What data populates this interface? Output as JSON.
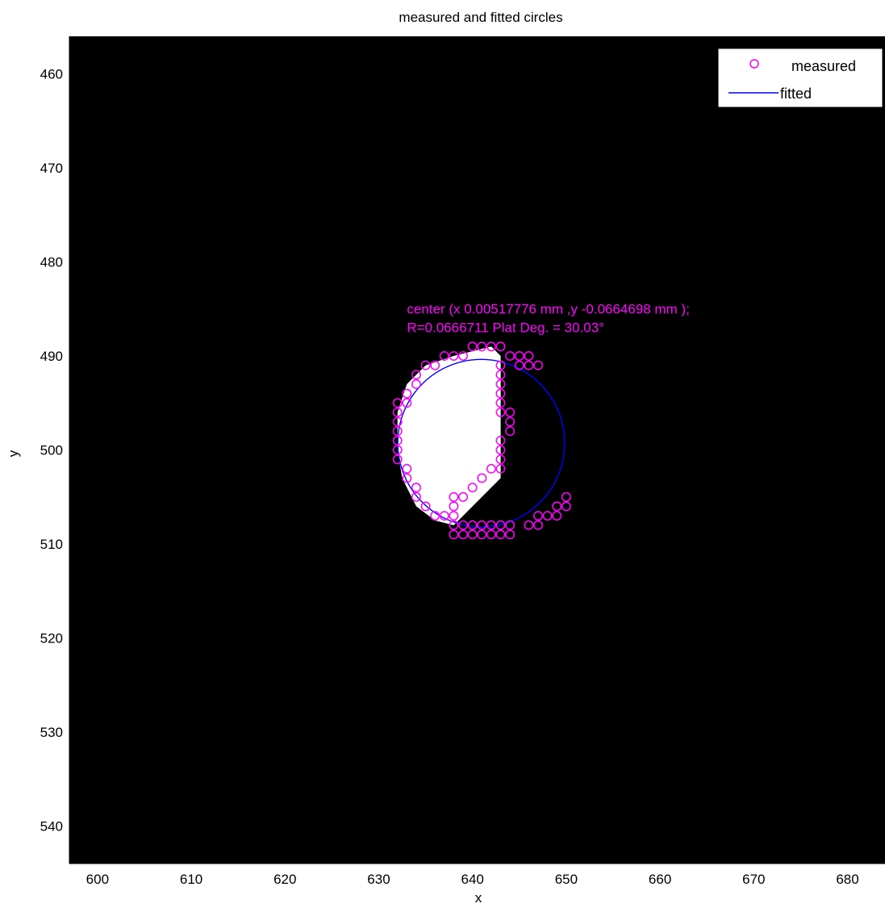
{
  "chart_data": {
    "type": "scatter",
    "title": "measured and fitted circles",
    "xlabel": "x",
    "ylabel": "y",
    "xlim": [
      597,
      684
    ],
    "ylim": [
      456,
      544
    ],
    "y_reversed": true,
    "xticks": [
      600,
      610,
      620,
      630,
      640,
      650,
      660,
      670,
      680
    ],
    "yticks": [
      460,
      470,
      480,
      490,
      500,
      510,
      520,
      530,
      540
    ],
    "grid": false,
    "legend_position": "top-right",
    "legend": [
      {
        "label": "measured",
        "marker": "circle",
        "color": "#ff00ff"
      },
      {
        "label": "fitted",
        "marker": "line",
        "color": "#0000ff"
      }
    ],
    "annotation_lines": [
      "center (x 0.00517776 mm ,y -0.0664698 mm );",
      "R=0.0666711 Plat Deg. = 30.03°"
    ],
    "annotation_anchor": [
      633,
      485.5
    ],
    "background_color": "#000000",
    "image_shape": {
      "color": "#ffffff",
      "outline": [
        [
          638,
          490
        ],
        [
          642,
          489
        ],
        [
          643,
          490
        ],
        [
          643,
          503
        ],
        [
          640,
          506
        ],
        [
          638,
          508
        ],
        [
          636,
          507.5
        ],
        [
          634,
          506
        ],
        [
          632.5,
          503
        ],
        [
          632,
          500
        ],
        [
          632,
          496
        ],
        [
          633,
          493
        ],
        [
          635,
          491
        ]
      ]
    },
    "series": [
      {
        "name": "measured",
        "marker": "circle",
        "color": "#ff00ff",
        "points": [
          [
            637,
            490
          ],
          [
            638,
            490
          ],
          [
            639,
            490
          ],
          [
            640,
            489
          ],
          [
            641,
            489
          ],
          [
            642,
            489
          ],
          [
            643,
            489
          ],
          [
            644,
            490
          ],
          [
            645,
            490
          ],
          [
            646,
            490
          ],
          [
            645,
            491
          ],
          [
            646,
            491
          ],
          [
            647,
            491
          ],
          [
            636,
            491
          ],
          [
            635,
            491
          ],
          [
            634,
            492
          ],
          [
            634,
            493
          ],
          [
            633,
            494
          ],
          [
            633,
            495
          ],
          [
            632,
            495
          ],
          [
            632,
            496
          ],
          [
            632,
            497
          ],
          [
            632,
            498
          ],
          [
            632,
            499
          ],
          [
            632,
            500
          ],
          [
            632,
            501
          ],
          [
            633,
            502
          ],
          [
            633,
            503
          ],
          [
            634,
            504
          ],
          [
            634,
            505
          ],
          [
            635,
            506
          ],
          [
            636,
            507
          ],
          [
            637,
            507
          ],
          [
            638,
            507
          ],
          [
            638,
            508
          ],
          [
            639,
            508
          ],
          [
            640,
            508
          ],
          [
            641,
            508
          ],
          [
            642,
            508
          ],
          [
            643,
            508
          ],
          [
            644,
            508
          ],
          [
            638,
            509
          ],
          [
            639,
            509
          ],
          [
            640,
            509
          ],
          [
            641,
            509
          ],
          [
            642,
            509
          ],
          [
            643,
            509
          ],
          [
            644,
            509
          ],
          [
            646,
            508
          ],
          [
            647,
            508
          ],
          [
            647,
            507
          ],
          [
            648,
            507
          ],
          [
            649,
            507
          ],
          [
            649,
            506
          ],
          [
            650,
            506
          ],
          [
            650,
            505
          ],
          [
            638,
            506
          ],
          [
            638,
            505
          ],
          [
            639,
            505
          ],
          [
            640,
            504
          ],
          [
            641,
            503
          ],
          [
            642,
            502
          ],
          [
            643,
            502
          ],
          [
            643,
            501
          ],
          [
            643,
            500
          ],
          [
            643,
            499
          ],
          [
            644,
            498
          ],
          [
            644,
            497
          ],
          [
            644,
            496
          ],
          [
            643,
            496
          ],
          [
            643,
            495
          ],
          [
            643,
            494
          ],
          [
            643,
            493
          ],
          [
            643,
            492
          ],
          [
            643,
            491
          ]
        ]
      },
      {
        "name": "fitted",
        "type": "circle",
        "color": "#0000ff",
        "center": [
          640.93,
          499.27
        ],
        "radius": 8.9
      }
    ]
  }
}
